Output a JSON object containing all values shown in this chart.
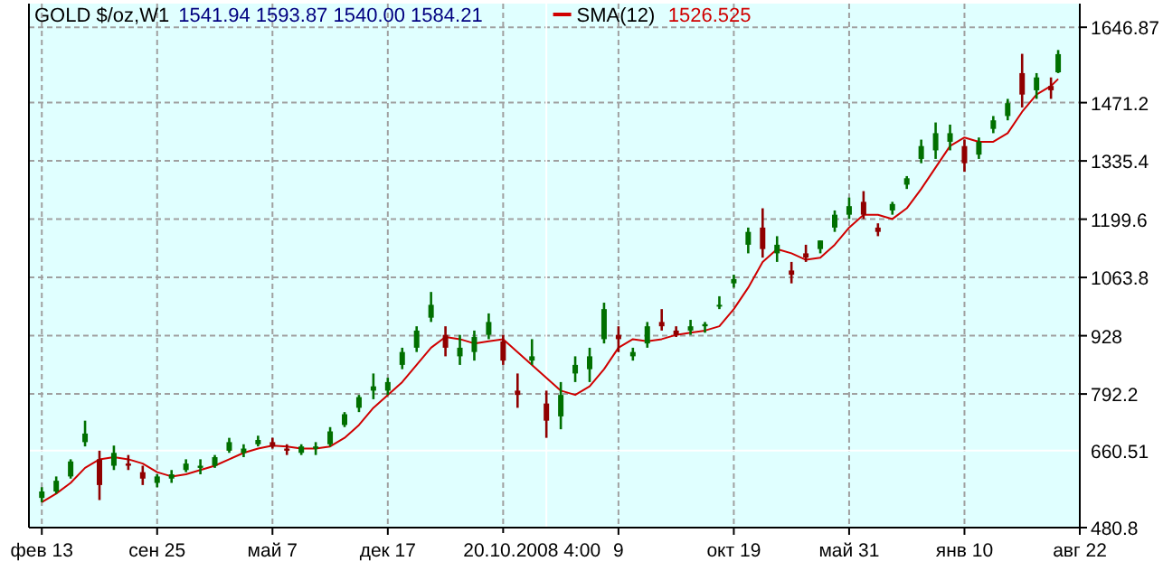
{
  "chart_data": {
    "type": "candlestick",
    "title": "GOLD $/oz,W1",
    "subtitle": "1541.94  1593.87  1540.00  1584.21",
    "annotations": [
      "1526.525"
    ],
    "x": [
      "2006-02-13",
      "2006-03-13",
      "2006-04-10",
      "2006-05-08",
      "2006-06-05",
      "2006-07-03",
      "2006-07-31",
      "2006-08-28",
      "2006-09-25",
      "2006-10-23",
      "2006-11-20",
      "2006-12-18",
      "2007-01-15",
      "2007-02-12",
      "2007-03-12",
      "2007-04-09",
      "2007-05-07",
      "2007-06-04",
      "2007-07-02",
      "2007-07-30",
      "2007-08-27",
      "2007-09-24",
      "2007-10-22",
      "2007-11-19",
      "2007-12-17",
      "2008-01-14",
      "2008-02-11",
      "2008-03-10",
      "2008-04-07",
      "2008-05-05",
      "2008-06-02",
      "2008-06-30",
      "2008-07-28",
      "2008-08-25",
      "2008-09-22",
      "2008-10-20",
      "2008-11-17",
      "2008-12-15",
      "2009-01-12",
      "2009-02-09",
      "2009-03-09",
      "2009-04-06",
      "2009-05-04",
      "2009-06-01",
      "2009-06-29",
      "2009-07-27",
      "2009-08-24",
      "2009-09-21",
      "2009-10-19",
      "2009-11-16",
      "2009-12-14",
      "2010-01-11",
      "2010-02-08",
      "2010-03-08",
      "2010-04-05",
      "2010-05-03",
      "2010-05-31",
      "2010-06-28",
      "2010-07-26",
      "2010-08-23",
      "2010-09-20",
      "2010-10-18",
      "2010-11-15",
      "2010-12-13",
      "2011-01-10",
      "2011-02-07",
      "2011-03-07",
      "2011-04-04",
      "2011-05-02",
      "2011-05-30",
      "2011-06-27",
      "2011-07-11"
    ],
    "ohlc": [
      [
        550,
        575,
        540,
        565
      ],
      [
        565,
        600,
        560,
        590
      ],
      [
        600,
        640,
        595,
        635
      ],
      [
        680,
        730,
        670,
        700
      ],
      [
        640,
        660,
        545,
        580
      ],
      [
        625,
        672,
        615,
        655
      ],
      [
        630,
        650,
        615,
        625
      ],
      [
        610,
        625,
        580,
        595
      ],
      [
        585,
        605,
        575,
        600
      ],
      [
        595,
        615,
        585,
        605
      ],
      [
        615,
        640,
        610,
        630
      ],
      [
        620,
        640,
        605,
        625
      ],
      [
        625,
        650,
        620,
        645
      ],
      [
        660,
        690,
        655,
        680
      ],
      [
        655,
        675,
        645,
        665
      ],
      [
        675,
        695,
        670,
        685
      ],
      [
        680,
        690,
        665,
        670
      ],
      [
        665,
        675,
        650,
        660
      ],
      [
        655,
        675,
        650,
        670
      ],
      [
        665,
        680,
        650,
        670
      ],
      [
        675,
        715,
        670,
        705
      ],
      [
        720,
        750,
        715,
        745
      ],
      [
        760,
        790,
        750,
        785
      ],
      [
        800,
        840,
        780,
        810
      ],
      [
        800,
        830,
        790,
        820
      ],
      [
        860,
        900,
        850,
        890
      ],
      [
        900,
        950,
        890,
        940
      ],
      [
        970,
        1030,
        960,
        1000
      ],
      [
        930,
        950,
        880,
        900
      ],
      [
        880,
        930,
        860,
        900
      ],
      [
        890,
        940,
        870,
        925
      ],
      [
        930,
        980,
        920,
        960
      ],
      [
        915,
        930,
        860,
        870
      ],
      [
        800,
        840,
        760,
        790
      ],
      [
        870,
        920,
        860,
        880
      ],
      [
        770,
        800,
        690,
        730
      ],
      [
        740,
        820,
        710,
        790
      ],
      [
        840,
        880,
        820,
        860
      ],
      [
        850,
        900,
        820,
        880
      ],
      [
        920,
        1005,
        910,
        990
      ],
      [
        930,
        950,
        890,
        920
      ],
      [
        880,
        900,
        870,
        890
      ],
      [
        910,
        960,
        900,
        950
      ],
      [
        960,
        990,
        940,
        950
      ],
      [
        940,
        950,
        925,
        930
      ],
      [
        940,
        965,
        930,
        950
      ],
      [
        950,
        960,
        935,
        955
      ],
      [
        1000,
        1020,
        990,
        1000
      ],
      [
        1050,
        1070,
        1040,
        1060
      ],
      [
        1140,
        1180,
        1120,
        1170
      ],
      [
        1180,
        1225,
        1110,
        1130
      ],
      [
        1120,
        1160,
        1100,
        1140
      ],
      [
        1080,
        1100,
        1050,
        1070
      ],
      [
        1120,
        1140,
        1100,
        1110
      ],
      [
        1130,
        1150,
        1120,
        1150
      ],
      [
        1180,
        1220,
        1170,
        1210
      ],
      [
        1210,
        1250,
        1200,
        1230
      ],
      [
        1240,
        1265,
        1200,
        1210
      ],
      [
        1180,
        1190,
        1160,
        1170
      ],
      [
        1220,
        1240,
        1210,
        1235
      ],
      [
        1280,
        1300,
        1270,
        1295
      ],
      [
        1340,
        1385,
        1330,
        1370
      ],
      [
        1360,
        1425,
        1340,
        1400
      ],
      [
        1380,
        1420,
        1360,
        1400
      ],
      [
        1370,
        1385,
        1310,
        1330
      ],
      [
        1350,
        1390,
        1340,
        1380
      ],
      [
        1410,
        1440,
        1400,
        1430
      ],
      [
        1440,
        1480,
        1430,
        1470
      ],
      [
        1540,
        1585,
        1460,
        1490
      ],
      [
        1500,
        1540,
        1480,
        1530
      ],
      [
        1510,
        1530,
        1480,
        1500
      ],
      [
        1541.94,
        1593.87,
        1540.0,
        1584.21
      ]
    ],
    "colors": [
      "#007000",
      "#007000",
      "#007000",
      "#007000",
      "#900000",
      "#007000",
      "#900000",
      "#900000",
      "#007000",
      "#007000",
      "#007000",
      "#007000",
      "#007000",
      "#007000",
      "#007000",
      "#007000",
      "#900000",
      "#900000",
      "#007000",
      "#007000",
      "#007000",
      "#007000",
      "#007000",
      "#007000",
      "#007000",
      "#007000",
      "#007000",
      "#007000",
      "#900000",
      "#007000",
      "#007000",
      "#007000",
      "#900000",
      "#900000",
      "#007000",
      "#900000",
      "#007000",
      "#007000",
      "#007000",
      "#007000",
      "#900000",
      "#007000",
      "#007000",
      "#900000",
      "#900000",
      "#007000",
      "#007000",
      "#007000",
      "#007000",
      "#007000",
      "#900000",
      "#007000",
      "#900000",
      "#900000",
      "#007000",
      "#007000",
      "#007000",
      "#900000",
      "#900000",
      "#007000",
      "#007000",
      "#007000",
      "#007000",
      "#007000",
      "#900000",
      "#007000",
      "#007000",
      "#007000",
      "#900000",
      "#007000",
      "#900000",
      "#007000"
    ],
    "series": [
      {
        "name": "SMA(12)",
        "type": "line",
        "color": "#d00000",
        "values": [
          540,
          560,
          585,
          620,
          640,
          645,
          640,
          630,
          610,
          600,
          605,
          615,
          625,
          640,
          655,
          665,
          672,
          670,
          665,
          665,
          670,
          690,
          720,
          760,
          790,
          820,
          860,
          900,
          925,
          920,
          910,
          915,
          920,
          890,
          860,
          830,
          800,
          790,
          810,
          850,
          900,
          920,
          915,
          920,
          930,
          935,
          940,
          950,
          990,
          1040,
          1100,
          1130,
          1120,
          1105,
          1110,
          1140,
          1180,
          1210,
          1210,
          1200,
          1225,
          1270,
          1320,
          1370,
          1390,
          1380,
          1380,
          1400,
          1450,
          1490,
          1510,
          1526.525
        ]
      }
    ],
    "xlim": [
      "2006-01-19",
      "2011-08-22"
    ],
    "xticks": [
      {
        "value": "2006-02-13",
        "label": "фев 13"
      },
      {
        "value": "2006-09-25",
        "label": "сен 25"
      },
      {
        "value": "2007-05-07",
        "label": "май 7"
      },
      {
        "value": "2007-12-17",
        "label": "дек 17"
      },
      {
        "value": "2008-07-28",
        "label": null
      },
      {
        "value": "2009-03-09",
        "label": "9"
      },
      {
        "value": "2009-10-19",
        "label": "окт 19"
      },
      {
        "value": "2010-05-31",
        "label": "май 31"
      },
      {
        "value": "2011-01-10",
        "label": "янв 10"
      },
      {
        "value": "2011-08-22",
        "label": "авг 22"
      }
    ],
    "ylim": [
      480.8,
      1702
    ],
    "yticks": [
      480.8,
      792.2,
      928.0,
      1063.8,
      1199.6,
      1335.4,
      1471.2,
      1646.87
    ],
    "ref_lines": [
      {
        "axis": "x",
        "value": "2008-10-20",
        "label": "20.10.2008 4:00",
        "color": "#ffffff"
      },
      {
        "axis": "y",
        "value": 660.51,
        "label": "660.51",
        "color": "#ffffff"
      }
    ],
    "grid": true,
    "legend": "top"
  }
}
